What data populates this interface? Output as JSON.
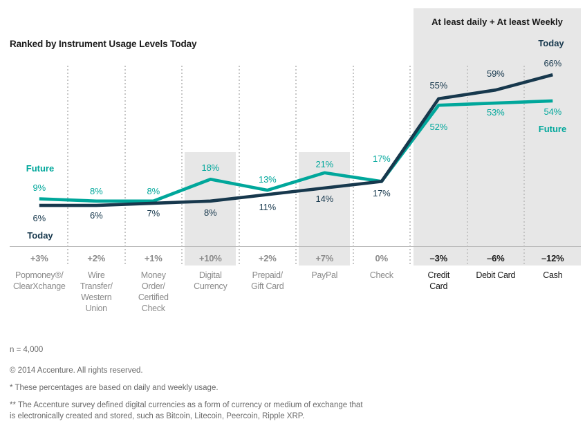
{
  "title": "Ranked by Instrument Usage Levels Today",
  "panel": {
    "header": "At least daily + At least Weekly"
  },
  "legend": {
    "today": "Today",
    "future": "Future"
  },
  "colors": {
    "today": "#17384d",
    "future": "#00a79b",
    "panel_bg": "#e7e7e7",
    "gray_text": "#8b8b8b",
    "dark_text": "#1a1a1a",
    "gridline": "#c6c6c6"
  },
  "chart_data": {
    "type": "line",
    "title": "Ranked by Instrument Usage Levels Today",
    "annotation": "At least daily + At least Weekly",
    "unit": "%",
    "categories": [
      "Popmoney®/\nClearXchange",
      "Wire\nTransfer/\nWestern\nUnion",
      "Money\nOrder/\nCertified\nCheck",
      "Digital\nCurrency",
      "Prepaid/\nGift Card",
      "PayPal",
      "Check",
      "Credit\nCard",
      "Debit Card",
      "Cash"
    ],
    "series": [
      {
        "name": "Today",
        "color": "#17384d",
        "values": [
          6,
          6,
          7,
          8,
          11,
          14,
          17,
          55,
          59,
          66
        ]
      },
      {
        "name": "Future",
        "color": "#00a79b",
        "values": [
          9,
          8,
          8,
          18,
          13,
          21,
          17,
          52,
          53,
          54
        ]
      }
    ],
    "deltas": [
      "+3%",
      "+2%",
      "+1%",
      "+10%",
      "+2%",
      "+7%",
      "0%",
      "–3%",
      "–6%",
      "–12%"
    ],
    "highlighted_category_indexes": [
      3,
      5
    ],
    "right_panel_start_index": 7,
    "ylim": [
      0,
      70
    ],
    "grid": "vertical-dotted",
    "legend_position": "inline-left-and-right"
  },
  "footnotes": {
    "sample": "n = 4,000",
    "copyright": "© 2014 Accenture. All rights reserved.",
    "note1": "* These percentages are based on daily and weekly usage.",
    "note2": "** The Accenture survey defined digital currencies as a form of currency or medium of exchange that is electronically created and stored, such as Bitcoin, Litecoin, Peercoin, Ripple XRP."
  }
}
